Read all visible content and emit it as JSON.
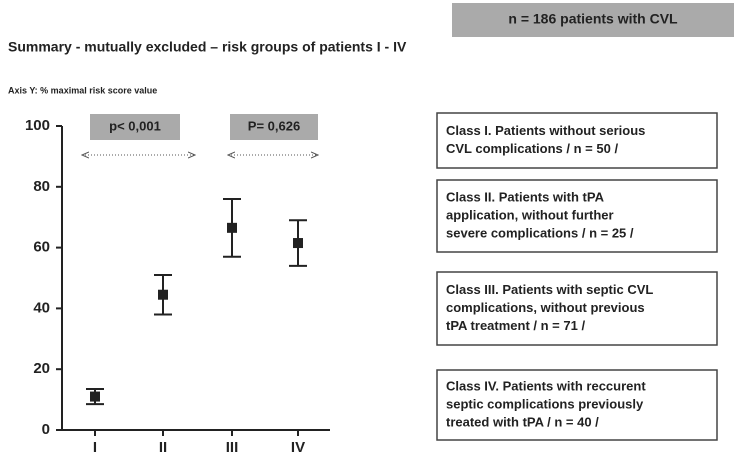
{
  "header": {
    "badge": "n = 186 patients with CVL",
    "title": "Summary  - mutually excluded – risk groups of patients I - IV"
  },
  "chart_data": {
    "type": "errorbar",
    "y_label": "Axis Y:  % maximal risk score value",
    "categories": [
      "I",
      "II",
      "III",
      "IV"
    ],
    "values": [
      11,
      44.5,
      66.5,
      61.5
    ],
    "errors": [
      2.5,
      6.5,
      9.5,
      7.5
    ],
    "color": "#222222",
    "ylim": [
      0,
      100
    ],
    "yticks": [
      0,
      20,
      40,
      60,
      80,
      100
    ],
    "annotations": [
      "p< 0,001",
      "P= 0,626"
    ]
  },
  "classes": [
    {
      "lines": [
        "Class I. Patients without serious",
        "CVL complications / n = 50 /"
      ]
    },
    {
      "lines": [
        "Class II. Patients with tPA",
        "application, without further",
        "severe complications / n = 25 /"
      ]
    },
    {
      "lines": [
        "Class III. Patients with septic CVL",
        "complications, without previous",
        "tPA treatment  / n = 71 /"
      ]
    },
    {
      "lines": [
        "Class IV. Patients with reccurent",
        "septic complications previously",
        "treated with tPA  / n = 40 /"
      ]
    }
  ]
}
